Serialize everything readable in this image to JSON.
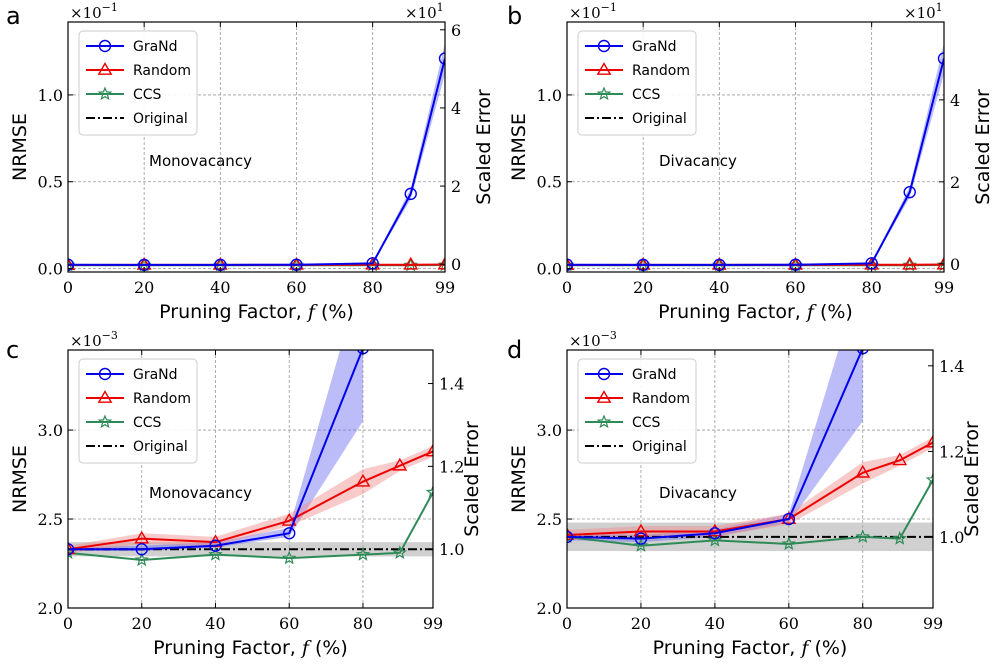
{
  "chart_data": [
    {
      "panel_label": "a",
      "type": "line",
      "title": "",
      "annotation": "Monovacancy",
      "xlabel": "Pruning Factor, f (%)",
      "ylabel": "NRMSE",
      "y2label": "Scaled Error",
      "x": [
        0,
        20,
        40,
        60,
        80,
        90,
        99
      ],
      "xticks": [
        "0",
        "20",
        "40",
        "60",
        "80",
        "99"
      ],
      "xtick_values": [
        0,
        20,
        40,
        60,
        80,
        99
      ],
      "yticks": [
        "0.0",
        "0.5",
        "1.0"
      ],
      "ytick_values": [
        0.0,
        0.5,
        1.0
      ],
      "ylim": [
        -0.02,
        1.42
      ],
      "y_exponent": "×10",
      "y_exponent_power": "−1",
      "y2ticks": [
        "0",
        "2",
        "4",
        "6"
      ],
      "y2tick_values": [
        0,
        2,
        4,
        6
      ],
      "y2lim": [
        -0.2,
        6.2
      ],
      "y2_exponent": "×10",
      "y2_exponent_power": "1",
      "grid": true,
      "legend_position": "top-left",
      "series": [
        {
          "name": "GraNd",
          "color": "#0000ee",
          "marker": "circle",
          "band": true,
          "values": [
            0.022,
            0.021,
            0.021,
            0.022,
            0.03,
            0.43,
            1.21
          ],
          "band_low": [
            0.02,
            0.02,
            0.02,
            0.02,
            0.026,
            0.4,
            1.12
          ],
          "band_high": [
            0.024,
            0.023,
            0.023,
            0.024,
            0.034,
            0.46,
            1.3
          ]
        },
        {
          "name": "Random",
          "color": "#ee0000",
          "marker": "triangle",
          "band": false,
          "values": [
            0.02,
            0.021,
            0.021,
            0.021,
            0.022,
            0.022,
            0.023
          ]
        },
        {
          "name": "CCS",
          "color": "#2e8b57",
          "marker": "star",
          "band": false,
          "values": [
            0.019,
            0.019,
            0.019,
            0.019,
            0.019,
            0.019,
            0.02
          ]
        },
        {
          "name": "Original",
          "color": "#000000",
          "marker": "none",
          "dash": "dashdot",
          "band": false,
          "values": [
            0.02,
            0.02,
            0.02,
            0.02,
            0.02,
            0.02,
            0.02
          ]
        }
      ]
    },
    {
      "panel_label": "b",
      "type": "line",
      "title": "",
      "annotation": "Divacancy",
      "xlabel": "Pruning Factor, f (%)",
      "ylabel": "NRMSE",
      "y2label": "Scaled Error",
      "x": [
        0,
        20,
        40,
        60,
        80,
        90,
        99
      ],
      "xticks": [
        "0",
        "20",
        "40",
        "60",
        "80",
        "99"
      ],
      "xtick_values": [
        0,
        20,
        40,
        60,
        80,
        99
      ],
      "yticks": [
        "0.0",
        "0.5",
        "1.0"
      ],
      "ytick_values": [
        0.0,
        0.5,
        1.0
      ],
      "ylim": [
        -0.02,
        1.42
      ],
      "y_exponent": "×10",
      "y_exponent_power": "−1",
      "y2ticks": [
        "0",
        "2",
        "4"
      ],
      "y2tick_values": [
        0,
        2,
        4
      ],
      "y2lim": [
        -0.2,
        5.9
      ],
      "y2_exponent": "×10",
      "y2_exponent_power": "1",
      "grid": true,
      "legend_position": "top-left",
      "series": [
        {
          "name": "GraNd",
          "color": "#0000ee",
          "marker": "circle",
          "band": true,
          "values": [
            0.022,
            0.021,
            0.021,
            0.022,
            0.03,
            0.44,
            1.21
          ],
          "band_low": [
            0.02,
            0.02,
            0.02,
            0.02,
            0.026,
            0.41,
            1.12
          ],
          "band_high": [
            0.024,
            0.023,
            0.023,
            0.024,
            0.034,
            0.47,
            1.3
          ]
        },
        {
          "name": "Random",
          "color": "#ee0000",
          "marker": "triangle",
          "band": false,
          "values": [
            0.02,
            0.021,
            0.021,
            0.021,
            0.022,
            0.022,
            0.023
          ]
        },
        {
          "name": "CCS",
          "color": "#2e8b57",
          "marker": "star",
          "band": false,
          "values": [
            0.019,
            0.019,
            0.019,
            0.019,
            0.019,
            0.019,
            0.02
          ]
        },
        {
          "name": "Original",
          "color": "#000000",
          "marker": "none",
          "dash": "dashdot",
          "band": false,
          "values": [
            0.02,
            0.02,
            0.02,
            0.02,
            0.02,
            0.02,
            0.02
          ]
        }
      ]
    },
    {
      "panel_label": "c",
      "type": "line",
      "title": "",
      "annotation": "Monovacancy",
      "xlabel": "Pruning Factor, f (%)",
      "ylabel": "NRMSE",
      "y2label": "Scaled Error",
      "x": [
        0,
        20,
        40,
        60,
        80,
        90,
        99
      ],
      "xticks": [
        "0",
        "20",
        "40",
        "60",
        "80",
        "99"
      ],
      "xtick_values": [
        0,
        20,
        40,
        60,
        80,
        99
      ],
      "yticks": [
        "2.0",
        "2.5",
        "3.0"
      ],
      "ytick_values": [
        2.0,
        2.5,
        3.0
      ],
      "ylim": [
        2.0,
        3.45
      ],
      "y_exponent": "×10",
      "y_exponent_power": "−3",
      "y2ticks": [
        "1.0",
        "1.2",
        "1.4"
      ],
      "y2tick_values": [
        1.0,
        1.2,
        1.4
      ],
      "y2lim": [
        0.858,
        1.481
      ],
      "grid": true,
      "legend_position": "top-left",
      "baseline_band": [
        2.29,
        2.37
      ],
      "series": [
        {
          "name": "GraNd",
          "color": "#0000ee",
          "marker": "circle",
          "band": true,
          "values": [
            2.33,
            2.33,
            2.35,
            2.42,
            3.46,
            null,
            null
          ],
          "band_low": [
            2.32,
            2.32,
            2.34,
            2.4,
            3.05,
            null,
            null
          ],
          "band_high": [
            2.34,
            2.35,
            2.37,
            2.45,
            3.9,
            null,
            null
          ]
        },
        {
          "name": "Random",
          "color": "#ee0000",
          "marker": "triangle",
          "band": true,
          "values": [
            2.33,
            2.39,
            2.37,
            2.49,
            2.71,
            2.8,
            2.88
          ],
          "band_low": [
            2.31,
            2.36,
            2.35,
            2.46,
            2.64,
            2.77,
            2.85
          ],
          "band_high": [
            2.35,
            2.42,
            2.4,
            2.53,
            2.78,
            2.83,
            2.91
          ]
        },
        {
          "name": "CCS",
          "color": "#2e8b57",
          "marker": "star",
          "band": false,
          "values": [
            2.31,
            2.27,
            2.3,
            2.28,
            2.3,
            2.31,
            2.65
          ]
        },
        {
          "name": "Original",
          "color": "#000000",
          "marker": "none",
          "dash": "dashdot",
          "band": false,
          "values": [
            2.33,
            2.33,
            2.33,
            2.33,
            2.33,
            2.33,
            2.33
          ]
        }
      ]
    },
    {
      "panel_label": "d",
      "type": "line",
      "title": "",
      "annotation": "Divacancy",
      "xlabel": "Pruning Factor, f (%)",
      "ylabel": "NRMSE",
      "y2label": "Scaled Error",
      "x": [
        0,
        20,
        40,
        60,
        80,
        90,
        99
      ],
      "xticks": [
        "0",
        "20",
        "40",
        "60",
        "80",
        "99"
      ],
      "xtick_values": [
        0,
        20,
        40,
        60,
        80,
        99
      ],
      "yticks": [
        "2.0",
        "2.5",
        "3.0"
      ],
      "ytick_values": [
        2.0,
        2.5,
        3.0
      ],
      "ylim": [
        2.0,
        3.45
      ],
      "y_exponent": "×10",
      "y_exponent_power": "−3",
      "y2ticks": [
        "1.0",
        "1.2",
        "1.4"
      ],
      "y2tick_values": [
        1.0,
        1.2,
        1.4
      ],
      "y2lim": [
        0.834,
        1.437
      ],
      "grid": true,
      "legend_position": "top-left",
      "baseline_band": [
        2.32,
        2.48
      ],
      "series": [
        {
          "name": "GraNd",
          "color": "#0000ee",
          "marker": "circle",
          "band": true,
          "values": [
            2.4,
            2.39,
            2.42,
            2.5,
            3.46,
            null,
            null
          ],
          "band_low": [
            2.38,
            2.37,
            2.4,
            2.48,
            3.05,
            null,
            null
          ],
          "band_high": [
            2.42,
            2.41,
            2.44,
            2.53,
            3.9,
            null,
            null
          ]
        },
        {
          "name": "Random",
          "color": "#ee0000",
          "marker": "triangle",
          "band": true,
          "values": [
            2.41,
            2.43,
            2.43,
            2.5,
            2.76,
            2.83,
            2.93
          ],
          "band_low": [
            2.38,
            2.4,
            2.4,
            2.47,
            2.7,
            2.8,
            2.9
          ],
          "band_high": [
            2.44,
            2.46,
            2.46,
            2.53,
            2.82,
            2.86,
            2.96
          ]
        },
        {
          "name": "CCS",
          "color": "#2e8b57",
          "marker": "star",
          "band": false,
          "values": [
            2.4,
            2.35,
            2.38,
            2.36,
            2.4,
            2.39,
            2.72
          ]
        },
        {
          "name": "Original",
          "color": "#000000",
          "marker": "none",
          "dash": "dashdot",
          "band": false,
          "values": [
            2.4,
            2.4,
            2.4,
            2.4,
            2.4,
            2.4,
            2.4
          ]
        }
      ]
    }
  ]
}
